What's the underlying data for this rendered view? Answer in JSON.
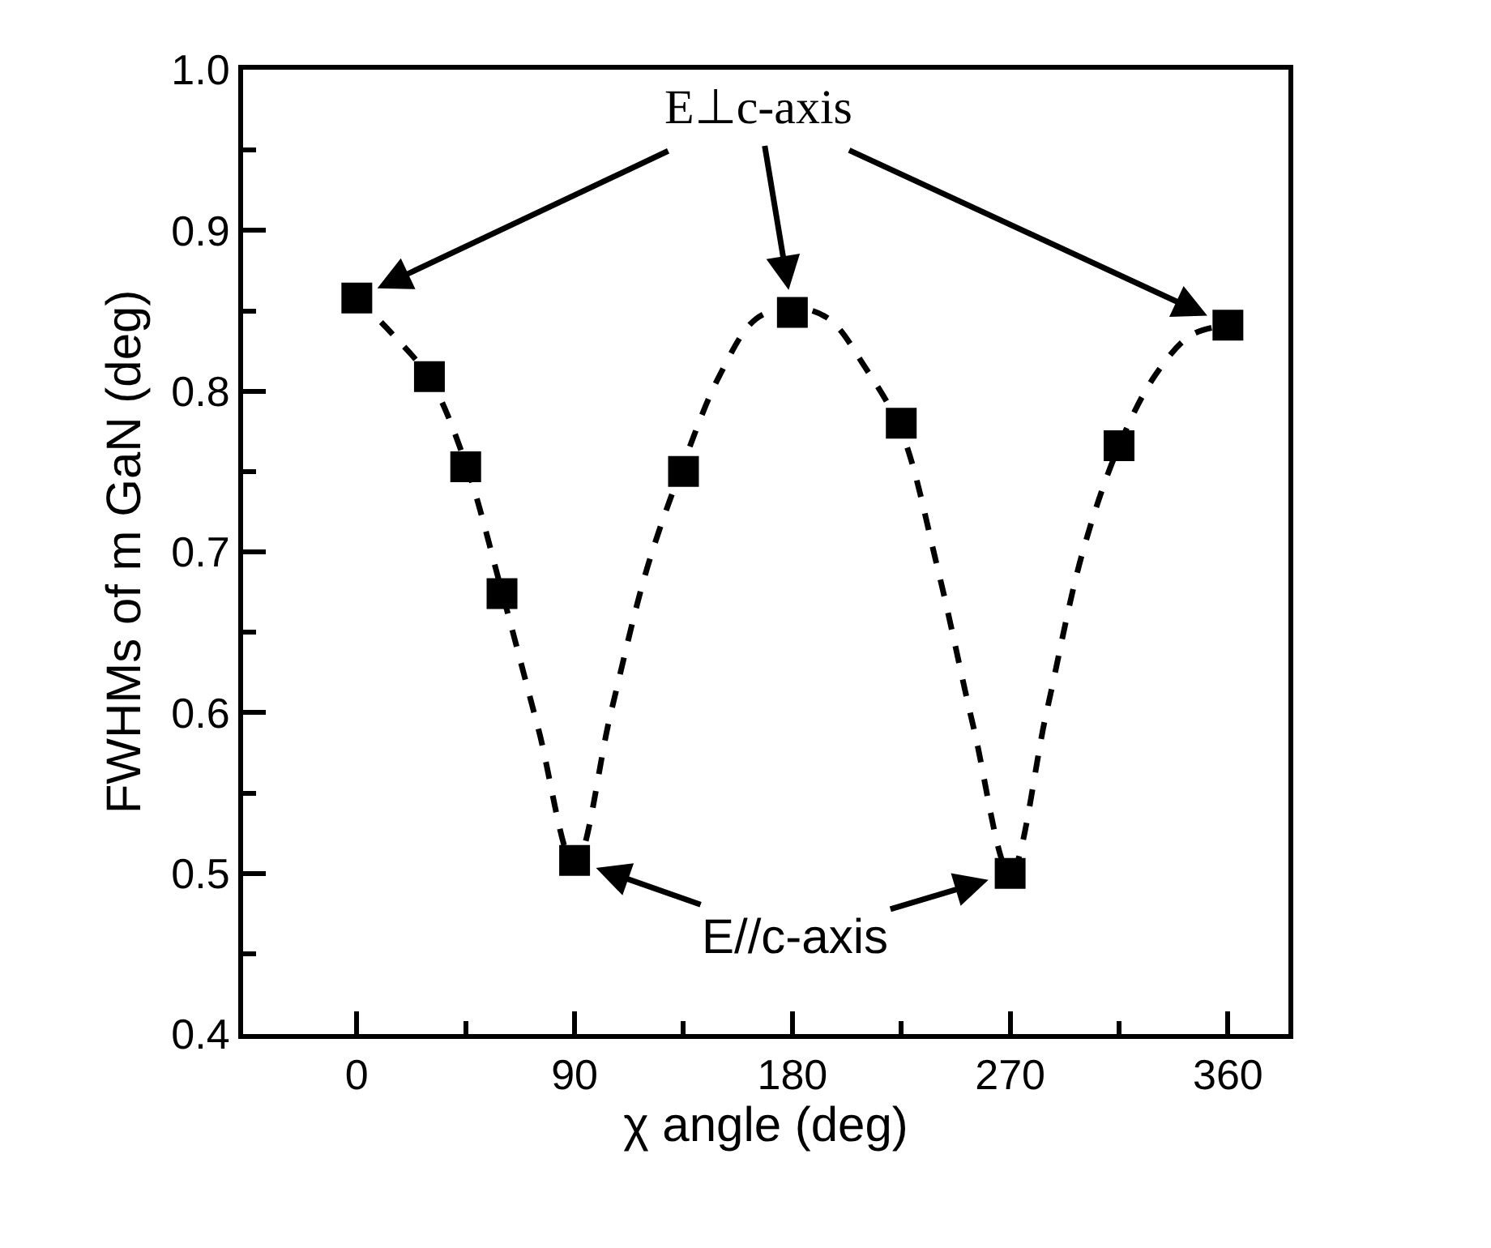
{
  "chart_data": {
    "type": "scatter",
    "xlabel": "χ angle (deg)",
    "ylabel": "FWHMs of m GaN (deg)",
    "xlim": [
      -47,
      385
    ],
    "ylim": [
      0.4,
      1.0
    ],
    "xticks": [
      0,
      {
        "value": 45,
        "label": null
      },
      90,
      {
        "value": 135,
        "label": null
      },
      180,
      {
        "value": 225,
        "label": null
      },
      270,
      {
        "value": 315,
        "label": null
      },
      360
    ],
    "yticks": [
      0.4,
      {
        "value": 0.45,
        "label": null
      },
      0.5,
      {
        "value": 0.55,
        "label": null
      },
      0.6,
      {
        "value": 0.65,
        "label": null
      },
      0.7,
      {
        "value": 0.75,
        "label": null
      },
      0.8,
      {
        "value": 0.85,
        "label": null
      },
      0.9,
      {
        "value": 0.95,
        "label": null
      },
      {
        "value": 1.0,
        "label": "1.0"
      }
    ],
    "series": [
      {
        "type": "line",
        "color": "#000000",
        "line_style": "dashed",
        "marker": "none",
        "x": [
          0,
          15,
          30,
          45,
          60,
          75,
          90,
          105,
          120,
          135,
          150,
          165,
          180,
          195,
          210,
          225,
          240,
          255,
          270,
          285,
          300,
          315,
          330,
          345,
          360
        ],
        "values": [
          0.858,
          0.835,
          0.808,
          0.755,
          0.675,
          0.59,
          0.505,
          0.6,
          0.69,
          0.755,
          0.81,
          0.845,
          0.852,
          0.845,
          0.815,
          0.775,
          0.69,
          0.59,
          0.5,
          0.6,
          0.7,
          0.766,
          0.81,
          0.835,
          0.841
        ]
      },
      {
        "color": "#000000",
        "marker": "square",
        "x": [
          0,
          30,
          45,
          60,
          90,
          135,
          180,
          225,
          270,
          315,
          360
        ],
        "values": [
          0.858,
          0.809,
          0.753,
          0.674,
          0.508,
          0.75,
          0.849,
          0.78,
          0.5,
          0.766,
          0.841
        ]
      }
    ],
    "annotations": [
      {
        "text": "E⊥c-axis",
        "x": 180,
        "y": 0.849
      },
      {
        "text": "E//c-axis",
        "x": 90,
        "y": 0.508
      }
    ]
  }
}
